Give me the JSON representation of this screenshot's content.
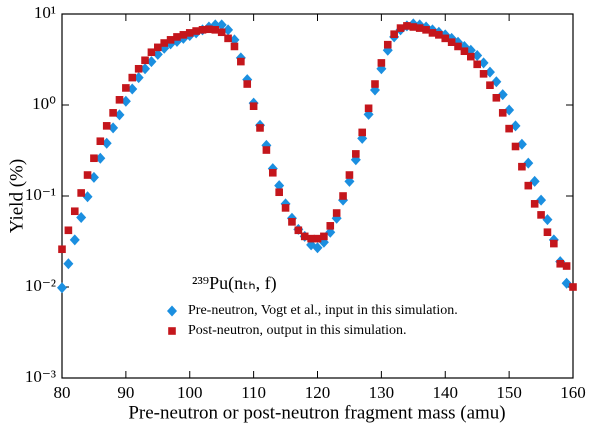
{
  "chart_data": {
    "type": "scatter",
    "xlabel": "Pre-neutron or post-neutron fragment mass (amu)",
    "ylabel": "Yield (%)",
    "annotation": "²³⁹Pu(nₜₕ, f)",
    "xlim": [
      80,
      160
    ],
    "xticks": [
      80,
      90,
      100,
      110,
      120,
      130,
      140,
      150,
      160
    ],
    "ylim": [
      0.001,
      10
    ],
    "log_y": true,
    "yticks": [
      {
        "value": 0.001,
        "label": "10⁻³"
      },
      {
        "value": 0.01,
        "label": "10⁻²"
      },
      {
        "value": 0.1,
        "label": "10⁻¹"
      },
      {
        "value": 1,
        "label": "10⁰"
      },
      {
        "value": 10,
        "label": "10¹"
      }
    ],
    "series": [
      {
        "name": "Pre-neutron, Vogt et al., input in this simulation.",
        "color": "#1b8fe0",
        "marker": "diamond",
        "x": [
          80,
          81,
          82,
          83,
          84,
          85,
          86,
          87,
          88,
          89,
          90,
          91,
          92,
          93,
          94,
          95,
          96,
          97,
          98,
          99,
          100,
          101,
          102,
          103,
          104,
          105,
          106,
          107,
          108,
          109,
          110,
          111,
          112,
          113,
          114,
          115,
          116,
          117,
          118,
          119,
          120,
          121,
          122,
          123,
          124,
          125,
          126,
          127,
          128,
          129,
          130,
          131,
          132,
          133,
          134,
          135,
          136,
          137,
          138,
          139,
          140,
          141,
          142,
          143,
          144,
          145,
          146,
          147,
          148,
          149,
          150,
          151,
          152,
          153,
          154,
          155,
          156,
          157,
          158,
          159
        ],
        "values": [
          0.0098,
          0.018,
          0.033,
          0.058,
          0.098,
          0.16,
          0.26,
          0.38,
          0.56,
          0.78,
          1.1,
          1.5,
          2.0,
          2.5,
          3.0,
          3.6,
          4.2,
          4.7,
          5.0,
          5.4,
          5.8,
          6.2,
          6.7,
          7.2,
          7.6,
          7.6,
          6.7,
          5.2,
          3.3,
          1.9,
          1.05,
          0.6,
          0.36,
          0.2,
          0.13,
          0.082,
          0.057,
          0.043,
          0.036,
          0.029,
          0.027,
          0.031,
          0.04,
          0.057,
          0.09,
          0.145,
          0.25,
          0.43,
          0.79,
          1.46,
          2.5,
          4.0,
          5.6,
          6.7,
          7.4,
          7.8,
          7.6,
          7.2,
          6.7,
          6.3,
          5.9,
          5.4,
          4.9,
          4.4,
          4.0,
          3.5,
          2.9,
          2.3,
          1.8,
          1.3,
          0.88,
          0.59,
          0.37,
          0.23,
          0.145,
          0.09,
          0.055,
          0.033,
          0.019,
          0.011
        ]
      },
      {
        "name": "Post-neutron, output in this simulation.",
        "color": "#c4161c",
        "marker": "square",
        "x": [
          80,
          81,
          82,
          83,
          84,
          85,
          86,
          87,
          88,
          89,
          90,
          91,
          92,
          93,
          94,
          95,
          96,
          97,
          98,
          99,
          100,
          101,
          102,
          103,
          104,
          105,
          106,
          107,
          108,
          109,
          110,
          111,
          112,
          113,
          114,
          115,
          116,
          117,
          118,
          119,
          120,
          121,
          122,
          123,
          124,
          125,
          126,
          127,
          128,
          129,
          130,
          131,
          132,
          133,
          134,
          135,
          136,
          137,
          138,
          139,
          140,
          141,
          142,
          143,
          144,
          145,
          146,
          147,
          148,
          149,
          150,
          151,
          152,
          153,
          154,
          155,
          156,
          157,
          158,
          159,
          160
        ],
        "values": [
          0.026,
          0.042,
          0.068,
          0.108,
          0.17,
          0.26,
          0.4,
          0.59,
          0.82,
          1.14,
          1.54,
          2.0,
          2.5,
          3.1,
          3.8,
          4.3,
          4.8,
          5.2,
          5.6,
          5.9,
          6.2,
          6.5,
          6.7,
          6.8,
          6.7,
          6.3,
          5.4,
          4.4,
          3.0,
          1.7,
          0.97,
          0.56,
          0.32,
          0.18,
          0.11,
          0.074,
          0.052,
          0.042,
          0.036,
          0.034,
          0.034,
          0.036,
          0.047,
          0.065,
          0.1,
          0.17,
          0.29,
          0.5,
          0.92,
          1.7,
          2.9,
          4.6,
          6.0,
          7.0,
          7.4,
          7.2,
          7.0,
          6.7,
          6.2,
          5.9,
          5.4,
          4.9,
          4.4,
          3.9,
          3.4,
          2.8,
          2.2,
          1.65,
          1.2,
          0.82,
          0.55,
          0.35,
          0.21,
          0.13,
          0.082,
          0.062,
          0.04,
          0.03,
          0.018,
          0.017,
          0.01
        ]
      }
    ]
  }
}
